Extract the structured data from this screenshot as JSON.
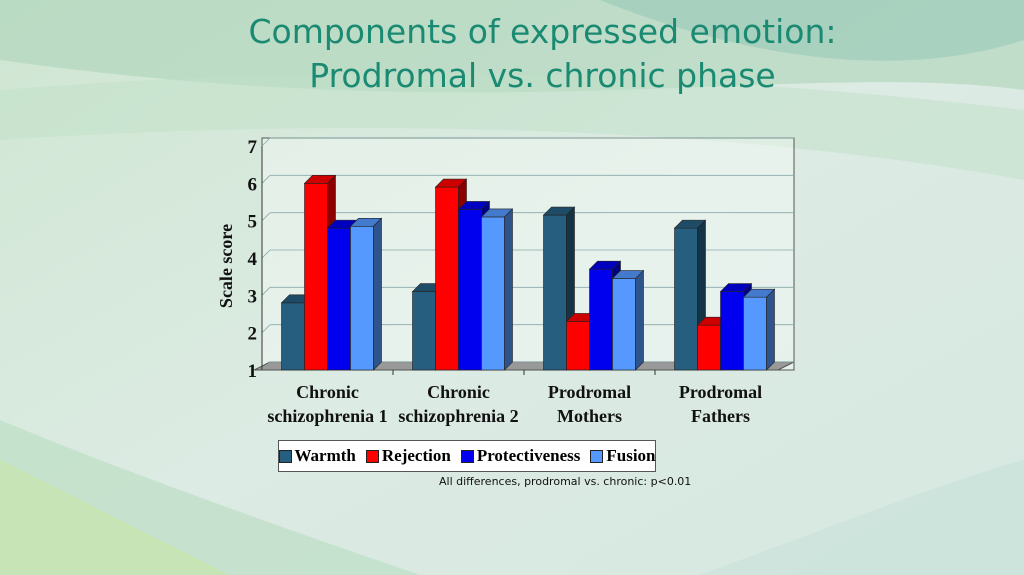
{
  "slide": {
    "title_line1": "Components of expressed emotion:",
    "title_line2": "Prodromal vs. chronic phase",
    "note": "All differences, prodromal vs. chronic:  p<0.01"
  },
  "chart_data": {
    "type": "bar",
    "title": "",
    "ylabel": "Scale score",
    "xlabel": "",
    "ylim": [
      1,
      7
    ],
    "yticks": [
      1,
      2,
      3,
      4,
      5,
      6,
      7
    ],
    "grid": true,
    "legend_position": "bottom",
    "categories": [
      [
        "Chronic",
        "schizophrenia 1"
      ],
      [
        "Chronic",
        "schizophrenia 2"
      ],
      [
        "Prodromal",
        "Mothers"
      ],
      [
        "Prodromal",
        "Fathers"
      ]
    ],
    "series": [
      {
        "name": "Warmth",
        "color": "#255e7e",
        "values": [
          2.8,
          3.1,
          5.15,
          4.8
        ]
      },
      {
        "name": "Rejection",
        "color": "#ff0000",
        "values": [
          6.0,
          5.9,
          2.3,
          2.2
        ]
      },
      {
        "name": "Protectiveness",
        "color": "#0000ee",
        "values": [
          4.8,
          5.3,
          3.7,
          3.1
        ]
      },
      {
        "name": "Fusion",
        "color": "#5599ff",
        "values": [
          4.85,
          5.1,
          3.45,
          2.95
        ]
      }
    ]
  }
}
